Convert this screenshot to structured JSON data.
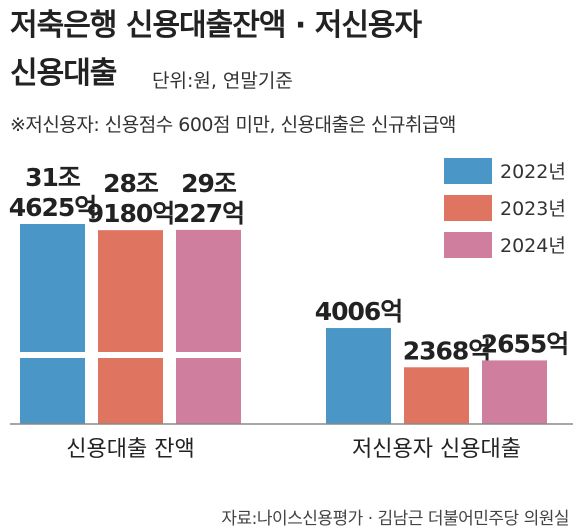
{
  "title_line1": "저축은행 신용대출잔액 · 저신용자",
  "title_line2": "신용대출",
  "unit": "단위:원, 연말기준",
  "note": "※저신용자: 신용점수 600점 미만, 신용대출은 신규취급액",
  "source": "자료:나이스신용평가 · 김남근 더불어민주당 의원실",
  "chart_data": {
    "type": "bar",
    "categories": [
      "신용대출 잔액",
      "저신용자 신용대출"
    ],
    "series": [
      {
        "name": "2022년",
        "color": "#4a96c7",
        "values": [
          314625,
          4006
        ],
        "labels": [
          "31조\n4625억",
          "4006억"
        ]
      },
      {
        "name": "2023년",
        "color": "#df7561",
        "values": [
          289180,
          2368
        ],
        "labels": [
          "28조\n9180억",
          "2368억"
        ]
      },
      {
        "name": "2024년",
        "color": "#cf7f9d",
        "values": [
          290227,
          2655
        ],
        "labels": [
          "29조\n227억",
          "2655억"
        ]
      }
    ],
    "y_unit": "억원",
    "axis_break": true,
    "legend_position": "top-right"
  }
}
